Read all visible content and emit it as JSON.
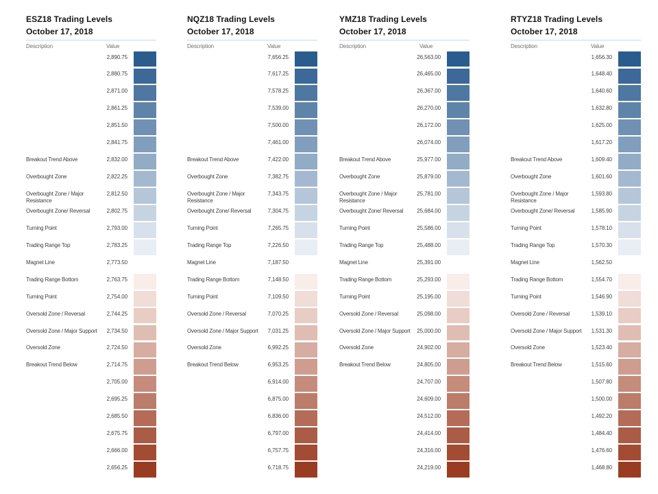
{
  "chart_data": {
    "type": "table",
    "date": "October 17, 2018",
    "columns": [
      "Description",
      "Value"
    ],
    "legend_position": "none",
    "grid": false,
    "color_scale": {
      "top": "#2B5C8E",
      "middle": "#FFFFFF",
      "bottom": "#9A3C22"
    },
    "descriptions": [
      "",
      "",
      "",
      "",
      "",
      "",
      "Breakout Trend Above",
      "Overbought Zone",
      "Overbought Zone / Major Resistance",
      "Overbought Zone/ Reversal",
      "Turning Point",
      "Trading Range Top",
      "Magnet Line",
      "Trading Range Bottom",
      "Turning Point",
      "Oversold Zone / Reversal",
      "Oversold Zone / Major Support",
      "Oversold Zone",
      "Breakout Trend Below",
      "",
      "",
      "",
      "",
      "",
      ""
    ],
    "row_colors": [
      "#2B5C8E",
      "#3C6997",
      "#4E77A1",
      "#5F84AA",
      "#7091B3",
      "#819EBC",
      "#93ACC6",
      "#A4B9CF",
      "#B5C6D8",
      "#C6D4E1",
      "#D8E1EB",
      "#E9EEF4",
      "#FFFFFF",
      "#F9EDE9",
      "#F0DDD7",
      "#E8CDC5",
      "#DFBDB3",
      "#D6ADA1",
      "#CE9D8F",
      "#C58C7C",
      "#BC7C6A",
      "#B46C58",
      "#AB5C46",
      "#A24C34",
      "#9A3C22"
    ],
    "tables": [
      {
        "title": "ESZ18 Trading Levels",
        "values": [
          "2,890.75",
          "2,880.75",
          "2,871.00",
          "2,861.25",
          "2,851.50",
          "2,841.75",
          "2,832.00",
          "2,822.25",
          "2,812.50",
          "2,802.75",
          "2,793.00",
          "2,783.25",
          "2,773.50",
          "2,763.75",
          "2,754.00",
          "2,744.25",
          "2,734.50",
          "2,724.50",
          "2,714.75",
          "2,705.00",
          "2,695.25",
          "2,685.50",
          "2,675.75",
          "2,666.00",
          "2,656.25"
        ]
      },
      {
        "title": "NQZ18 Trading Levels",
        "values": [
          "7,656.25",
          "7,617.25",
          "7,578.25",
          "7,539.00",
          "7,500.00",
          "7,461.00",
          "7,422.00",
          "7,382.75",
          "7,343.75",
          "7,304.75",
          "7,265.75",
          "7,226.50",
          "7,187.50",
          "7,148.50",
          "7,109.50",
          "7,070.25",
          "7,031.25",
          "6,992.25",
          "6,953.25",
          "6,914.00",
          "6,875.00",
          "6,836.00",
          "6,797.00",
          "6,757.75",
          "6,718.75"
        ]
      },
      {
        "title": "YMZ18 Trading Levels",
        "values": [
          "26,563.00",
          "26,465.00",
          "26,367.00",
          "26,270.00",
          "26,172.00",
          "26,074.00",
          "25,977.00",
          "25,879.00",
          "25,781.00",
          "25,684.00",
          "25,586.00",
          "25,488.00",
          "25,391.00",
          "25,293.00",
          "25,195.00",
          "25,098.00",
          "25,000.00",
          "24,902.00",
          "24,805.00",
          "24,707.00",
          "24,609.00",
          "24,512.00",
          "24,414.00",
          "24,316.00",
          "24,219.00"
        ]
      },
      {
        "title": "RTYZ18 Trading Levels",
        "values": [
          "1,656.30",
          "1,648.40",
          "1,640.60",
          "1,632.80",
          "1,625.00",
          "1,617.20",
          "1,609.40",
          "1,601.60",
          "1,593.80",
          "1,585.90",
          "1,578.10",
          "1,570.30",
          "1,562.50",
          "1,554.70",
          "1,546.90",
          "1,539.10",
          "1,531.30",
          "1,523.40",
          "1,515.60",
          "1,507.80",
          "1,500.00",
          "1,492.20",
          "1,484.40",
          "1,476.60",
          "1,468.80"
        ]
      }
    ]
  }
}
